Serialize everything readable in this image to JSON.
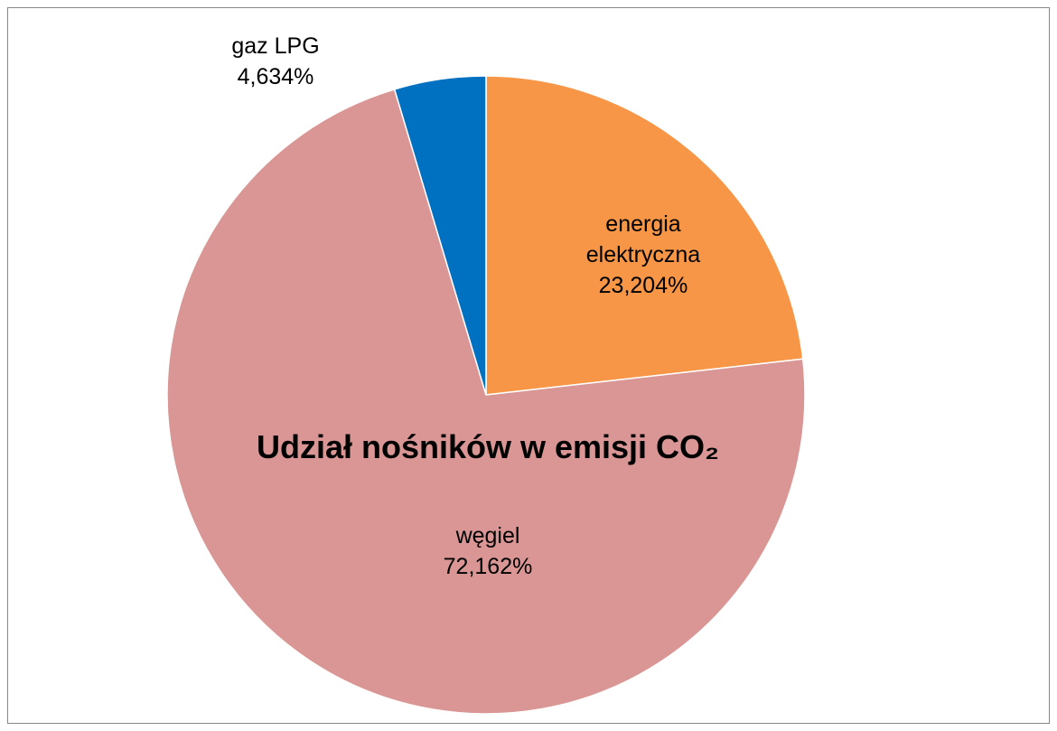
{
  "chart_data": {
    "type": "pie",
    "title": "Udział nośników w emisji CO₂",
    "categories": [
      "energia elektryczna",
      "węgiel",
      "gaz LPG"
    ],
    "values": [
      23.204,
      72.162,
      4.634
    ],
    "value_labels": [
      "23,204%",
      "72,162%",
      "4,634%"
    ],
    "colors": [
      "#f79646",
      "#d99694",
      "#0070c0"
    ]
  }
}
